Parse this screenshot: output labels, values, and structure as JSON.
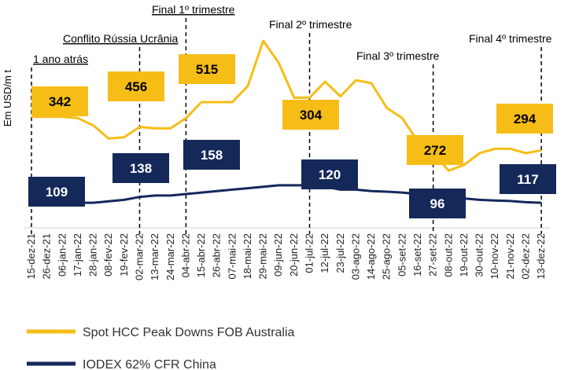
{
  "chart_data": {
    "type": "line",
    "y_label": "Em USD/m t",
    "categories": [
      "15-dez-21",
      "26-dez-21",
      "06-jan-22",
      "17-jan-22",
      "28-jan-22",
      "08-fev-22",
      "19-fev-22",
      "02-mar-22",
      "13-mar-22",
      "24-mar-22",
      "04-abr-22",
      "15-abr-22",
      "26-abr-22",
      "07-mai-22",
      "18-mai-22",
      "29-mai-22",
      "09-jun-22",
      "20-jun-22",
      "01-jul-22",
      "12-jul-22",
      "23-jul-22",
      "03-ago-22",
      "14-ago-22",
      "25-ago-22",
      "05-set-22",
      "16-set-22",
      "27-set-22",
      "08-out-22",
      "19-out-22",
      "30-out-22",
      "10-nov-22",
      "21-nov-22",
      "02-dez-22",
      "13-dez-22"
    ],
    "ylim": [
      0,
      700
    ],
    "series": [
      {
        "name": "Spot HCC Peak Downs FOB Australia",
        "color": "#f6bd16",
        "values": [
          405,
          405,
          405,
          400,
          375,
          330,
          335,
          370,
          365,
          365,
          400,
          455,
          455,
          455,
          510,
          665,
          590,
          470,
          470,
          525,
          475,
          530,
          520,
          435,
          400,
          320,
          280,
          220,
          240,
          280,
          295,
          295,
          280,
          290
        ],
        "boxes": [
          342,
          456,
          515,
          304,
          272,
          294
        ]
      },
      {
        "name": "IODEX 62% CFR China",
        "color": "#14285a",
        "values": [
          120,
          115,
          110,
          110,
          110,
          115,
          120,
          130,
          135,
          135,
          140,
          145,
          150,
          155,
          160,
          165,
          170,
          170,
          170,
          165,
          155,
          155,
          150,
          148,
          145,
          140,
          135,
          130,
          125,
          120,
          118,
          116,
          112,
          110
        ],
        "boxes": [
          109,
          138,
          158,
          120,
          96,
          117
        ]
      }
    ],
    "annotations": [
      {
        "label": "1 ano atrás",
        "category": 0
      },
      {
        "label": "Conflito Rússia Ucrânia",
        "category": 7
      },
      {
        "label": "Final 1º trimestre",
        "category": 10
      },
      {
        "label": "Final 2º trimestre",
        "category": 18
      },
      {
        "label": "Final 3º trimestre",
        "category": 26
      },
      {
        "label": "Final 4º trimestre",
        "category": 33
      }
    ]
  }
}
